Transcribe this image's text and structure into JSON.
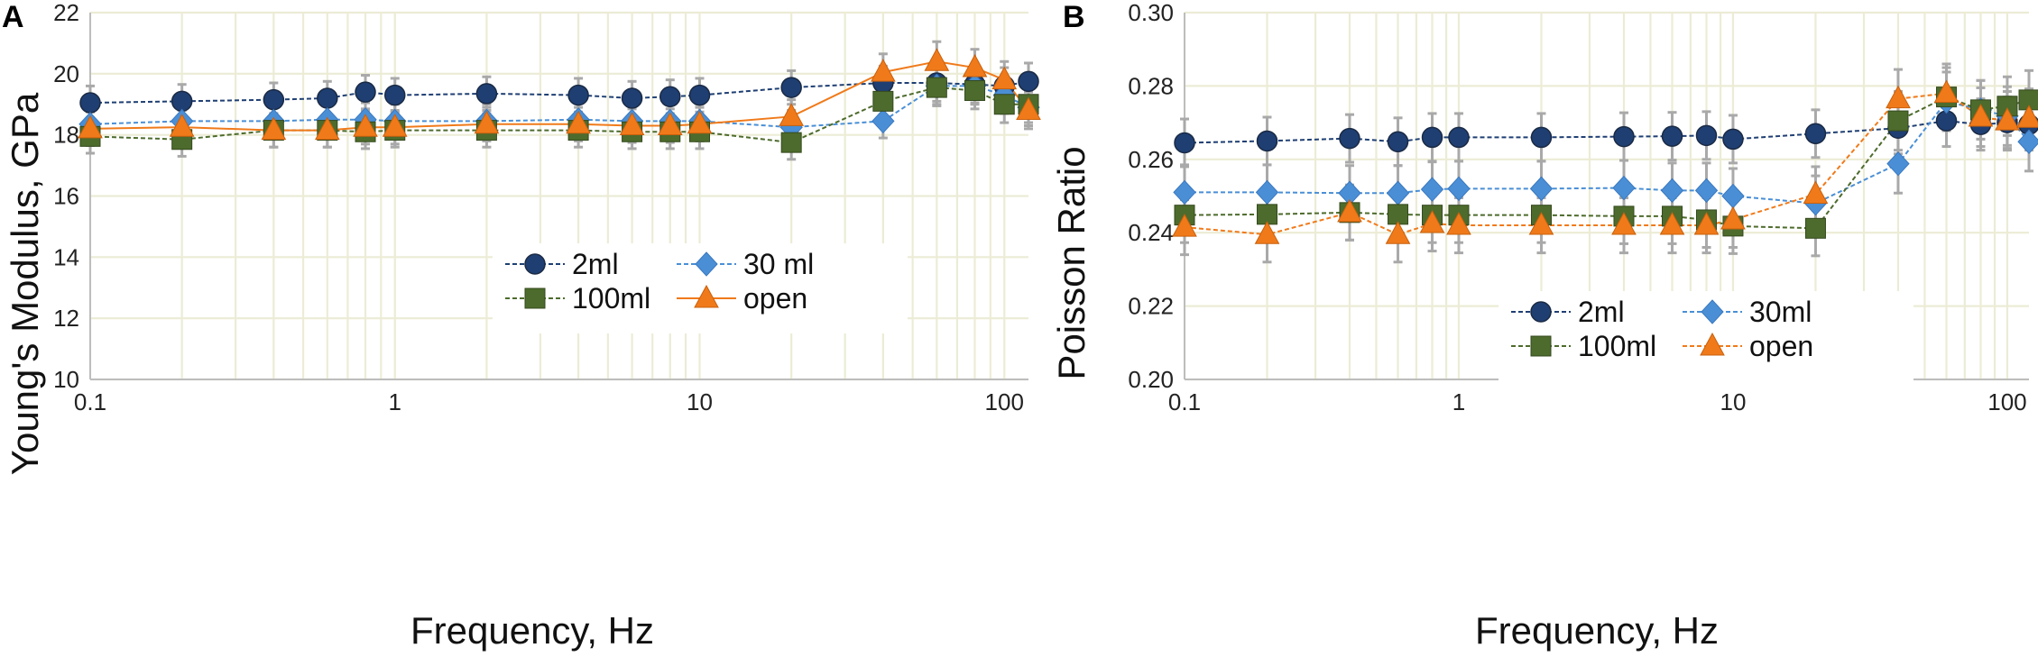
{
  "chart_data": [
    {
      "type": "line",
      "panel": "A",
      "xscale": "log",
      "xlim": [
        0.1,
        120
      ],
      "ylim": [
        10,
        22
      ],
      "xlabel": "Frequency, Hz",
      "ylabel": "Young's Modulus, GPa",
      "xticks": [
        0.1,
        1,
        10,
        100
      ],
      "xtick_labels": [
        "0.1",
        "1",
        "10",
        "100"
      ],
      "yticks": [
        10,
        12,
        14,
        16,
        18,
        20,
        22
      ],
      "ytick_labels": [
        "10",
        "12",
        "14",
        "16",
        "18",
        "20",
        "22"
      ],
      "legend_position": "lower-right",
      "x": [
        0.1,
        0.2,
        0.4,
        0.6,
        0.8,
        1,
        2,
        4,
        6,
        8,
        10,
        20,
        40,
        60,
        80,
        100,
        120
      ],
      "series": [
        {
          "name": "2ml",
          "color": "#1f3f73",
          "marker": "circle",
          "values": [
            19.05,
            19.1,
            19.15,
            19.2,
            19.4,
            19.3,
            19.35,
            19.3,
            19.2,
            19.25,
            19.3,
            19.55,
            19.7,
            19.7,
            19.65,
            19.6,
            19.75
          ],
          "errors": [
            0.55,
            0.55,
            0.55,
            0.55,
            0.55,
            0.55,
            0.55,
            0.55,
            0.55,
            0.55,
            0.55,
            0.55,
            0.55,
            0.6,
            0.6,
            0.6,
            0.6
          ]
        },
        {
          "name": "30 ml",
          "color": "#4a8fd6",
          "marker": "diamond",
          "values": [
            18.35,
            18.45,
            18.45,
            18.5,
            18.5,
            18.45,
            18.45,
            18.5,
            18.45,
            18.45,
            18.45,
            18.25,
            18.45,
            19.6,
            19.6,
            19.3,
            18.9
          ],
          "errors": [
            0.55,
            0.55,
            0.55,
            0.55,
            0.55,
            0.55,
            0.55,
            0.55,
            0.55,
            0.55,
            0.55,
            0.55,
            0.55,
            0.6,
            0.6,
            0.6,
            0.6
          ]
        },
        {
          "name": "100ml",
          "color": "#4d6b2c",
          "marker": "square",
          "values": [
            17.95,
            17.85,
            18.15,
            18.15,
            18.1,
            18.15,
            18.15,
            18.15,
            18.1,
            18.1,
            18.1,
            17.75,
            19.1,
            19.55,
            19.45,
            19.0,
            19.0
          ],
          "errors": [
            0.55,
            0.55,
            0.55,
            0.55,
            0.55,
            0.55,
            0.55,
            0.55,
            0.55,
            0.55,
            0.55,
            0.55,
            0.6,
            0.6,
            0.6,
            0.6,
            0.6
          ]
        },
        {
          "name": "open",
          "color": "#f07a1a",
          "marker": "triangle",
          "values": [
            18.2,
            18.25,
            18.15,
            18.15,
            18.25,
            18.25,
            18.35,
            18.35,
            18.3,
            18.3,
            18.35,
            18.6,
            20.05,
            20.4,
            20.2,
            19.8,
            18.8
          ],
          "errors": [
            0.55,
            0.55,
            0.55,
            0.55,
            0.55,
            0.55,
            0.55,
            0.55,
            0.55,
            0.55,
            0.55,
            0.55,
            0.6,
            0.65,
            0.6,
            0.6,
            0.6
          ]
        }
      ]
    },
    {
      "type": "line",
      "panel": "B",
      "xscale": "log",
      "xlim": [
        0.1,
        120
      ],
      "ylim": [
        0.2,
        0.3
      ],
      "xlabel": "Frequency, Hz",
      "ylabel": "Poisson Ratio",
      "xticks": [
        0.1,
        1,
        10,
        100
      ],
      "xtick_labels": [
        "0.1",
        "1",
        "10",
        "100"
      ],
      "yticks": [
        0.2,
        0.22,
        0.24,
        0.26,
        0.28,
        0.3
      ],
      "ytick_labels": [
        "0.20",
        "0.22",
        "0.24",
        "0.26",
        "0.28",
        "0.30"
      ],
      "legend_position": "lower-center",
      "x": [
        0.1,
        0.2,
        0.4,
        0.6,
        0.8,
        1,
        2,
        4,
        6,
        8,
        10,
        20,
        40,
        60,
        80,
        100,
        120
      ],
      "series": [
        {
          "name": "2ml",
          "color": "#1f3f73",
          "marker": "circle",
          "values": [
            0.2645,
            0.265,
            0.2657,
            0.2648,
            0.266,
            0.266,
            0.266,
            0.2662,
            0.2663,
            0.2665,
            0.2655,
            0.267,
            0.2685,
            0.2705,
            0.2695,
            0.27,
            0.2695
          ],
          "errors": [
            0.0065,
            0.0065,
            0.0065,
            0.0065,
            0.0065,
            0.0065,
            0.0065,
            0.0065,
            0.0065,
            0.0065,
            0.0065,
            0.0065,
            0.007,
            0.007,
            0.007,
            0.007,
            0.007
          ]
        },
        {
          "name": "30ml",
          "color": "#4a8fd6",
          "marker": "diamond",
          "values": [
            0.251,
            0.251,
            0.2508,
            0.2508,
            0.2518,
            0.252,
            0.252,
            0.2522,
            0.2515,
            0.2515,
            0.25,
            0.248,
            0.2588,
            0.2758,
            0.2735,
            0.2718,
            0.2648
          ],
          "errors": [
            0.0075,
            0.0075,
            0.0075,
            0.0075,
            0.0075,
            0.0075,
            0.0075,
            0.0075,
            0.0075,
            0.0075,
            0.0075,
            0.0075,
            0.008,
            0.008,
            0.008,
            0.008,
            0.008
          ]
        },
        {
          "name": "100ml",
          "color": "#4d6b2c",
          "marker": "square",
          "values": [
            0.2448,
            0.245,
            0.2455,
            0.245,
            0.2448,
            0.2448,
            0.2448,
            0.2445,
            0.2445,
            0.2435,
            0.2418,
            0.2412,
            0.2705,
            0.277,
            0.2735,
            0.2745,
            0.2762
          ],
          "errors": [
            0.0075,
            0.0075,
            0.0075,
            0.0075,
            0.0075,
            0.0075,
            0.0075,
            0.0075,
            0.0075,
            0.0075,
            0.0075,
            0.0075,
            0.008,
            0.008,
            0.008,
            0.008,
            0.008
          ]
        },
        {
          "name": "open",
          "color": "#f07a1a",
          "marker": "triangle",
          "values": [
            0.2415,
            0.2395,
            0.2455,
            0.2395,
            0.2425,
            0.242,
            0.242,
            0.242,
            0.242,
            0.242,
            0.2435,
            0.2505,
            0.2765,
            0.278,
            0.2715,
            0.2705,
            0.2712
          ],
          "errors": [
            0.0075,
            0.0075,
            0.0075,
            0.0075,
            0.0075,
            0.0075,
            0.0075,
            0.0075,
            0.0075,
            0.0075,
            0.0075,
            0.0075,
            0.008,
            0.008,
            0.008,
            0.008,
            0.008
          ]
        }
      ]
    }
  ]
}
